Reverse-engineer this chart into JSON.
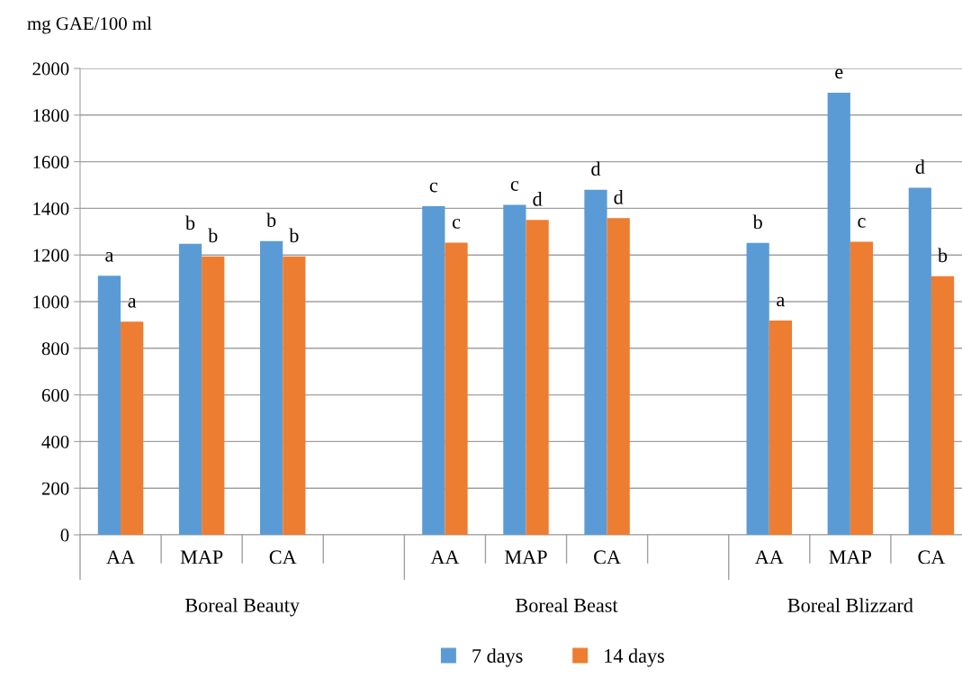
{
  "chart_data": {
    "type": "bar",
    "ylabel": "mg GAE/100 ml",
    "categories": [
      "AA",
      "MAP",
      "CA",
      null,
      "AA",
      "MAP",
      "CA",
      null,
      "AA",
      "MAP",
      "CA"
    ],
    "series": [
      {
        "name": "7 days",
        "color": "#5b9bd5",
        "values": [
          1111,
          1248,
          1260,
          null,
          1409,
          1415,
          1480,
          null,
          1252,
          1896,
          1488
        ],
        "value_labels": [
          "a",
          "b",
          "b",
          null,
          "c",
          "c",
          "d",
          null,
          "b",
          "e",
          "d"
        ]
      },
      {
        "name": "14 days",
        "color": "#ed7d31",
        "values": [
          914,
          1194,
          1194,
          null,
          1253,
          1350,
          1358,
          null,
          919,
          1257,
          1109
        ],
        "value_labels": [
          "a",
          "b",
          "b",
          null,
          "c",
          "d",
          "d",
          null,
          "a",
          "c",
          "b"
        ]
      }
    ],
    "annotations": [
      "Boreal Beauty",
      "Boreal Beast",
      "Boreal Blizzard"
    ],
    "ylim": [
      0,
      2000
    ],
    "yticks": [
      0,
      200,
      400,
      600,
      800,
      1000,
      1200,
      1400,
      1600,
      1800,
      2000
    ],
    "grid": "y",
    "legend": "bottom"
  }
}
